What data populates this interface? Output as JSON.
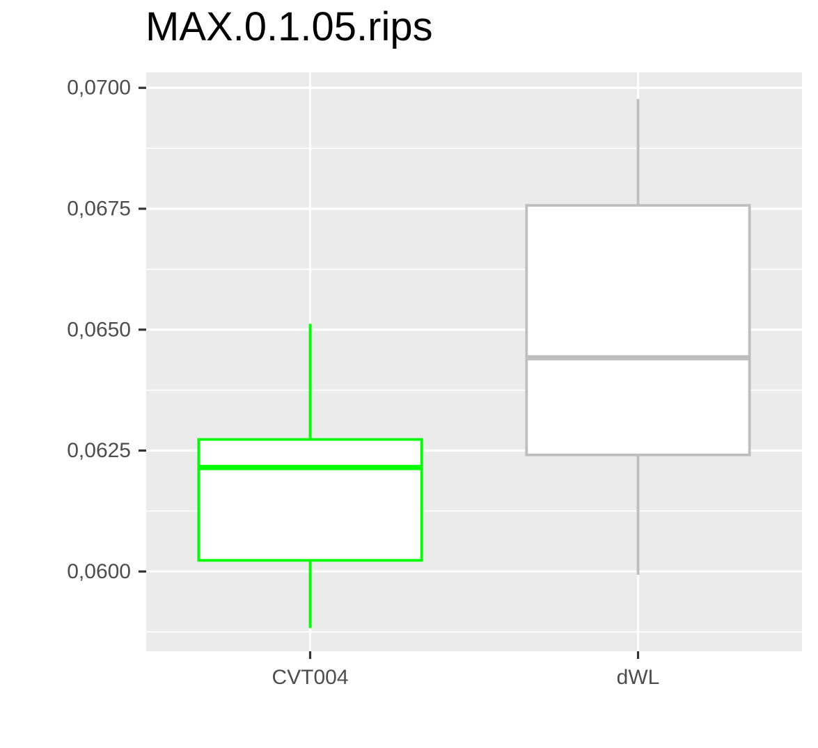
{
  "chart_data": {
    "type": "box",
    "title": "MAX.0.1.05.rips",
    "xlabel": "",
    "ylabel": "",
    "categories": [
      "CVT004",
      "dWL"
    ],
    "ylim": [
      0.05835,
      0.07032
    ],
    "yticks": [
      0.06,
      0.0625,
      0.065,
      0.0675,
      0.07
    ],
    "ytick_labels": [
      "0,0600",
      "0,0625",
      "0,0650",
      "0,0675",
      "0,0700"
    ],
    "grid": true,
    "legend": "none",
    "background_color": "#EBEBEB",
    "grid_color": "#FFFFFF",
    "series": [
      {
        "category": "CVT004",
        "color": "#00FF00",
        "fill": "#FFFFFF",
        "whisker_low": 0.05883,
        "q1": 0.06023,
        "median": 0.06215,
        "q3": 0.06273,
        "whisker_high": 0.06512
      },
      {
        "category": "dWL",
        "color": "#BEBEBE",
        "fill": "#FFFFFF",
        "whisker_low": 0.05993,
        "q1": 0.06241,
        "median": 0.06442,
        "q3": 0.06757,
        "whisker_high": 0.06977
      }
    ]
  }
}
